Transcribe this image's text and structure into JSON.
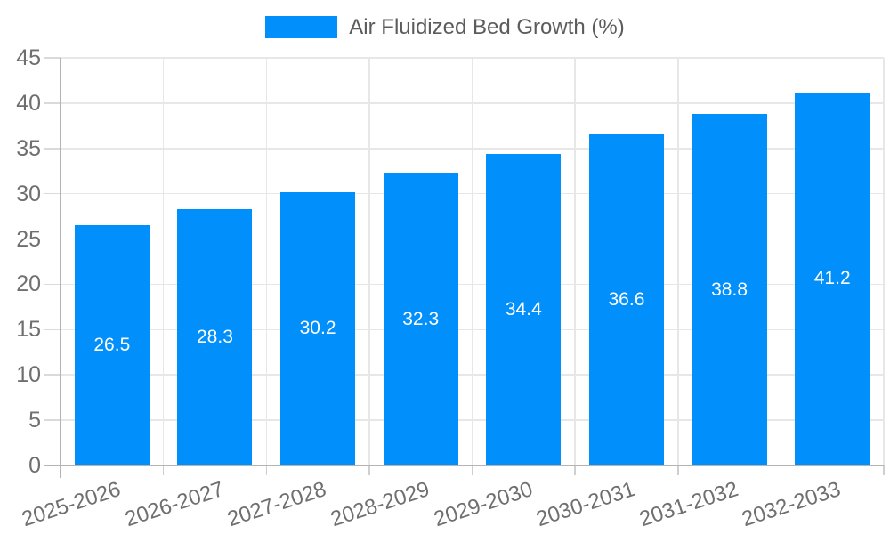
{
  "legend": {
    "series_label": "Air Fluidized Bed Growth (%)"
  },
  "chart_data": {
    "type": "bar",
    "title": "Air Fluidized Bed Growth (%)",
    "categories": [
      "2025-2026",
      "2026-2027",
      "2027-2028",
      "2028-2029",
      "2029-2030",
      "2030-2031",
      "2031-2032",
      "2032-2033"
    ],
    "series": [
      {
        "name": "Air Fluidized Bed Growth (%)",
        "values": [
          26.5,
          28.3,
          30.2,
          32.3,
          34.4,
          36.6,
          38.8,
          41.2
        ]
      }
    ],
    "data_labels": [
      "26.5",
      "28.3",
      "30.2",
      "32.3",
      "34.4",
      "36.6",
      "38.8",
      "41.2"
    ],
    "y_tick_labels": [
      "0",
      "5",
      "10",
      "15",
      "20",
      "25",
      "30",
      "35",
      "40",
      "45"
    ],
    "xlabel": "",
    "ylabel": "",
    "ylim": [
      0,
      45
    ],
    "ytick_step": 5,
    "grid": true,
    "legend_position": "top",
    "x_label_rotation_deg": -18,
    "colors": {
      "bar": "#008FFB",
      "grid": "#e7e7e7",
      "axis": "#b4b4b4",
      "tick_label": "#6f6f6f",
      "legend_text": "#5c5c5c",
      "data_label": "#ffffff",
      "background": "#ffffff"
    }
  }
}
